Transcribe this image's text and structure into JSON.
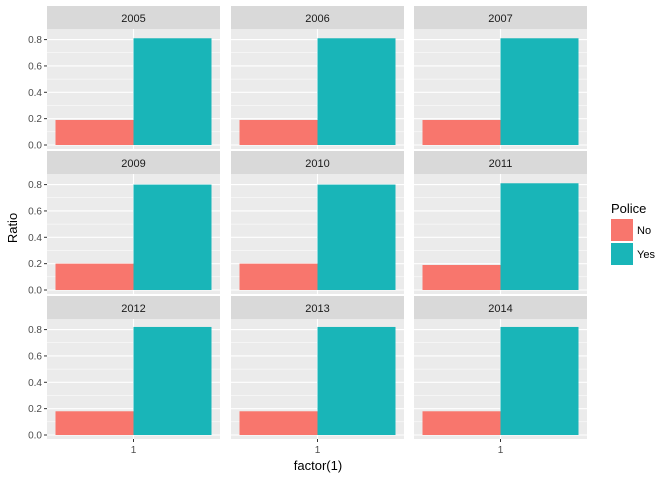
{
  "chart_data": {
    "type": "bar",
    "facet_by": "year",
    "xlabel": "factor(1)",
    "ylabel": "Ratio",
    "x_tick": "1",
    "ylim": [
      0,
      0.85
    ],
    "yticks": [
      0.0,
      0.2,
      0.4,
      0.6,
      0.8
    ],
    "ytick_labels": [
      "0.0",
      "0.2",
      "0.4",
      "0.6",
      "0.8"
    ],
    "grid": true,
    "legend": {
      "title": "Police",
      "position": "right",
      "entries": [
        {
          "label": "No",
          "color": "#F8766D"
        },
        {
          "label": "Yes",
          "color": "#19B5B8"
        }
      ]
    },
    "panels": [
      {
        "label": "2005",
        "values": {
          "No": 0.19,
          "Yes": 0.81
        }
      },
      {
        "label": "2006",
        "values": {
          "No": 0.19,
          "Yes": 0.81
        }
      },
      {
        "label": "2007",
        "values": {
          "No": 0.19,
          "Yes": 0.81
        }
      },
      {
        "label": "2009",
        "values": {
          "No": 0.2,
          "Yes": 0.8
        }
      },
      {
        "label": "2010",
        "values": {
          "No": 0.2,
          "Yes": 0.8
        }
      },
      {
        "label": "2011",
        "values": {
          "No": 0.19,
          "Yes": 0.81
        }
      },
      {
        "label": "2012",
        "values": {
          "No": 0.18,
          "Yes": 0.82
        }
      },
      {
        "label": "2013",
        "values": {
          "No": 0.18,
          "Yes": 0.82
        }
      },
      {
        "label": "2014",
        "values": {
          "No": 0.18,
          "Yes": 0.82
        }
      }
    ]
  },
  "colors": {
    "panel_bg": "#EBEBEB",
    "strip_bg": "#D9D9D9",
    "grid": "#FFFFFF"
  }
}
